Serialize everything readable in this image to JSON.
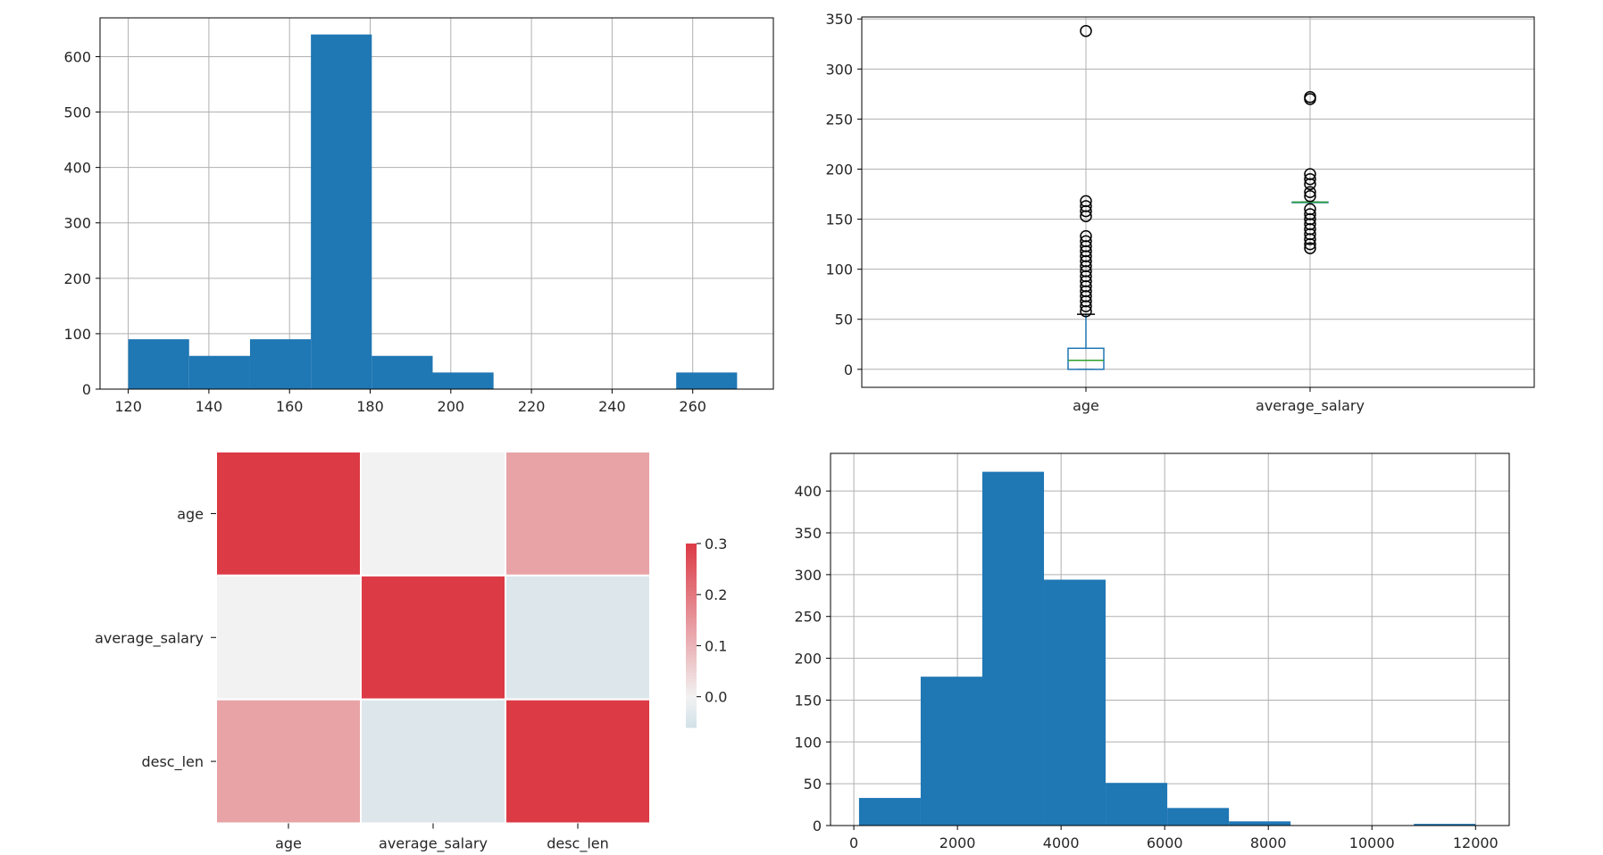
{
  "chart_data": [
    {
      "type": "bar",
      "subtype": "histogram",
      "title": "",
      "xlabel": "",
      "ylabel": "",
      "grid": true,
      "xlim": [
        113,
        280
      ],
      "ylim": [
        0,
        670
      ],
      "xticks": [
        120,
        140,
        160,
        180,
        200,
        220,
        240,
        260
      ],
      "yticks": [
        0,
        100,
        200,
        300,
        400,
        500,
        600
      ],
      "bin_edges": [
        120,
        135.1,
        150.2,
        165.3,
        180.4,
        195.5,
        210.6,
        225.7,
        240.8,
        255.9,
        271
      ],
      "values": [
        90,
        60,
        90,
        640,
        60,
        30,
        0,
        0,
        0,
        30
      ],
      "bar_color": "#1f77b4"
    },
    {
      "type": "box",
      "title": "",
      "grid": true,
      "ylim": [
        -18,
        352
      ],
      "yticks": [
        0,
        50,
        100,
        150,
        200,
        250,
        300,
        350
      ],
      "categories": [
        "age",
        "average_salary"
      ],
      "boxes": [
        {
          "name": "age",
          "q1": 0,
          "median": 9,
          "q3": 21,
          "whisker_low": 0,
          "whisker_high": 55,
          "outliers": [
            58,
            63,
            68,
            73,
            78,
            83,
            88,
            93,
            98,
            103,
            108,
            113,
            118,
            123,
            128,
            133,
            153,
            158,
            163,
            168,
            338
          ]
        },
        {
          "name": "average_salary",
          "q1": 167,
          "median": 167,
          "q3": 167,
          "whisker_low": 167,
          "whisker_high": 167,
          "outliers": [
            121,
            125,
            130,
            135,
            140,
            145,
            150,
            155,
            160,
            173,
            177,
            185,
            190,
            195,
            270,
            272
          ]
        }
      ],
      "colors": {
        "box": "#1f77b4",
        "median": "#2ca02c",
        "flier": "#000000"
      }
    },
    {
      "type": "heatmap",
      "title": "",
      "rows": [
        "age",
        "average_salary",
        "desc_len"
      ],
      "cols": [
        "age",
        "average_salary",
        "desc_len"
      ],
      "values": [
        [
          1.0,
          0.0,
          0.13
        ],
        [
          0.0,
          1.0,
          -0.04
        ],
        [
          0.13,
          -0.04,
          1.0
        ]
      ],
      "vmin": -0.06,
      "vmax": 0.3,
      "colorbar_ticks": [
        "0.3",
        "0.2",
        "0.1",
        "0.0"
      ],
      "colorbar_tick_values": [
        0.3,
        0.2,
        0.1,
        0.0
      ],
      "colors": {
        "low": "#d2e2e8",
        "mid": "#f2f2f2",
        "high": "#dc3b46"
      }
    },
    {
      "type": "bar",
      "subtype": "histogram",
      "title": "",
      "xlabel": "",
      "ylabel": "",
      "grid": true,
      "xlim": [
        -450,
        12650
      ],
      "ylim": [
        0,
        445
      ],
      "xticks": [
        0,
        2000,
        4000,
        6000,
        8000,
        10000,
        12000
      ],
      "yticks": [
        0,
        50,
        100,
        150,
        200,
        250,
        300,
        350,
        400
      ],
      "bin_edges": [
        100,
        1290,
        2480,
        3670,
        4860,
        6050,
        7240,
        8430,
        9620,
        10810,
        12000
      ],
      "values": [
        33,
        178,
        423,
        294,
        51,
        21,
        5,
        0,
        0,
        2
      ],
      "bar_color": "#1f77b4"
    }
  ]
}
